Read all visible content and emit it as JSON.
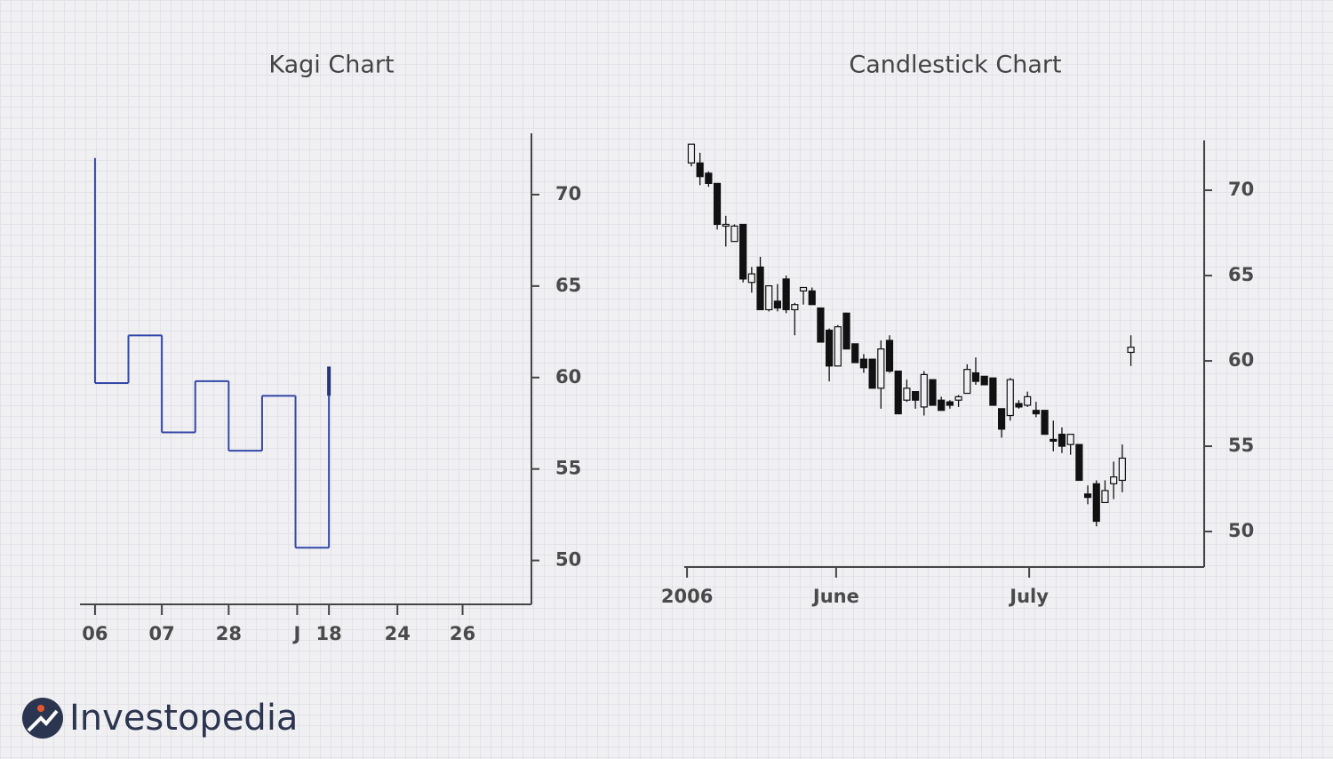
{
  "chart_data": [
    {
      "type": "kagi",
      "title": "Kagi Chart",
      "values": [
        72,
        59.7,
        62.3,
        57,
        59.8,
        56,
        59,
        50.7,
        60.6
      ],
      "color": "#3447a8",
      "thick_color": "#2a3578",
      "xlim": [
        -0.45,
        13.06
      ],
      "xticks": [
        {
          "value": 0,
          "label": "06"
        },
        {
          "value": 2,
          "label": "07"
        },
        {
          "value": 4,
          "label": "28"
        },
        {
          "value": 6.05,
          "label": "J"
        },
        {
          "value": 7,
          "label": "18"
        },
        {
          "value": 9.05,
          "label": "24"
        },
        {
          "value": 11,
          "label": "26"
        }
      ],
      "ylim": [
        47.6,
        73.35
      ],
      "yticks": [
        50,
        55,
        60,
        65,
        70
      ]
    },
    {
      "type": "candlestick",
      "title": "Candlestick Chart",
      "open": [
        71.6,
        71.6,
        71.0,
        70.4,
        67.9,
        67.0,
        68.0,
        64.6,
        65.5,
        63.0,
        63.5,
        64.8,
        63.0,
        64.1,
        64.1,
        63.1,
        61.8,
        59.7,
        62.8,
        61.0,
        60.1,
        60.1,
        58.4,
        61.2,
        59.4,
        57.7,
        58.2,
        57.3,
        58.9,
        57.7,
        57.6,
        57.7,
        58.1,
        59.3,
        59.1,
        59.0,
        57.2,
        56.8,
        57.5,
        57.4,
        57.1,
        57.1,
        55.4,
        55.7,
        55.1,
        55.1,
        52.2,
        52.8,
        51.7,
        52.8,
        53.0,
        60.5
      ],
      "high": [
        72.7,
        72.2,
        71.1,
        70.4,
        68.5,
        68.0,
        68.0,
        65.5,
        66.1,
        64.4,
        64.5,
        65.0,
        63.4,
        64.3,
        64.3,
        63.1,
        61.9,
        62.1,
        62.8,
        61.0,
        60.4,
        60.1,
        61.2,
        61.5,
        59.4,
        58.9,
        58.2,
        59.4,
        58.9,
        57.9,
        57.7,
        58.0,
        59.8,
        60.2,
        59.1,
        59.0,
        57.2,
        59.0,
        57.7,
        58.2,
        57.6,
        57.1,
        56.5,
        56.1,
        55.7,
        55.1,
        52.7,
        53.0,
        53.0,
        54.1,
        55.1,
        61.5
      ],
      "low": [
        71.4,
        70.3,
        70.2,
        67.7,
        66.7,
        67.0,
        64.6,
        64.0,
        63.0,
        62.9,
        62.9,
        62.8,
        61.5,
        63.3,
        63.3,
        61.1,
        58.8,
        59.7,
        60.7,
        59.9,
        59.3,
        58.4,
        57.2,
        59.3,
        56.9,
        57.6,
        57.2,
        56.8,
        57.4,
        57.1,
        57.2,
        57.3,
        58.1,
        58.6,
        58.6,
        57.4,
        55.5,
        56.5,
        57.2,
        57.3,
        56.7,
        55.7,
        54.7,
        54.6,
        54.5,
        53.0,
        51.6,
        50.3,
        51.7,
        51.9,
        52.3,
        59.7
      ],
      "close": [
        72.7,
        70.8,
        70.4,
        68.0,
        68.0,
        67.9,
        64.8,
        65.1,
        63.0,
        64.4,
        63.1,
        63.0,
        63.3,
        64.3,
        63.3,
        61.1,
        59.7,
        62.0,
        60.7,
        59.9,
        59.6,
        58.4,
        60.7,
        59.4,
        56.9,
        58.4,
        57.7,
        59.2,
        57.4,
        57.1,
        57.4,
        57.9,
        59.5,
        58.8,
        58.6,
        57.4,
        56.0,
        58.9,
        57.3,
        57.9,
        56.9,
        55.7,
        55.3,
        55.0,
        55.7,
        53.0,
        52.0,
        50.6,
        52.4,
        53.2,
        54.3,
        60.8
      ],
      "xlim": [
        -0.82,
        59.5
      ],
      "xticks": [
        {
          "value": -0.5,
          "label": "2006"
        },
        {
          "value": 16.8,
          "label": "June"
        },
        {
          "value": 39.2,
          "label": "July"
        }
      ],
      "ylim": [
        47.92,
        72.92
      ],
      "yticks": [
        50,
        55,
        60,
        65,
        70
      ]
    }
  ],
  "brand": "Investopedia"
}
